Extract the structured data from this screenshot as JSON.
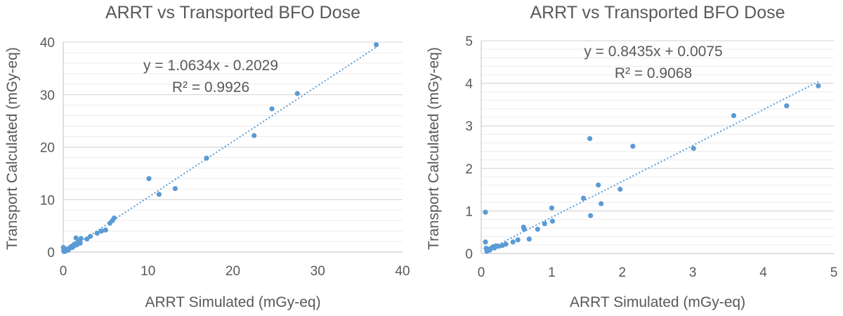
{
  "chart_data": [
    {
      "type": "scatter",
      "title": "ARRT vs Transported BFO Dose",
      "xlabel": "ARRT Simulated (mGy-eq)",
      "ylabel": "Transport Calculated (mGy-eq)",
      "xlim": [
        0,
        40
      ],
      "ylim": [
        0,
        40
      ],
      "xticks": [
        "0",
        "10",
        "20",
        "30",
        "40"
      ],
      "yticks": [
        "0",
        "10",
        "20",
        "30",
        "40"
      ],
      "grid": true,
      "color": "#5b9bd5",
      "trendline": {
        "slope": 1.0634,
        "intercept": -0.2029,
        "equation": "y = 1.0634x - 0.2029",
        "r2": "R² = 0.9926"
      },
      "points": [
        [
          0.02,
          0.9
        ],
        [
          0.05,
          0.3
        ],
        [
          0.1,
          0.1
        ],
        [
          0.2,
          0.3
        ],
        [
          0.3,
          0.2
        ],
        [
          0.4,
          0.5
        ],
        [
          0.5,
          0.6
        ],
        [
          0.6,
          0.4
        ],
        [
          0.7,
          0.7
        ],
        [
          0.8,
          0.8
        ],
        [
          0.9,
          1.0
        ],
        [
          1.0,
          1.1
        ],
        [
          1.1,
          0.9
        ],
        [
          1.2,
          1.2
        ],
        [
          1.3,
          1.5
        ],
        [
          1.4,
          1.3
        ],
        [
          1.5,
          1.6
        ],
        [
          1.6,
          1.4
        ],
        [
          1.7,
          1.8
        ],
        [
          1.5,
          2.7
        ],
        [
          1.8,
          2.0
        ],
        [
          2.0,
          1.7
        ],
        [
          2.1,
          2.6
        ],
        [
          2.8,
          2.5
        ],
        [
          3.2,
          3.0
        ],
        [
          4.0,
          3.6
        ],
        [
          4.5,
          4.0
        ],
        [
          5.0,
          4.2
        ],
        [
          5.5,
          5.5
        ],
        [
          5.8,
          6.0
        ],
        [
          6.0,
          6.5
        ],
        [
          10.1,
          14.0
        ],
        [
          11.3,
          11.0
        ],
        [
          13.2,
          12.1
        ],
        [
          16.9,
          17.9
        ],
        [
          22.5,
          22.2
        ],
        [
          24.6,
          27.3
        ],
        [
          27.6,
          30.2
        ],
        [
          36.9,
          39.5
        ]
      ]
    },
    {
      "type": "scatter",
      "title": "ARRT vs Transported BFO Dose",
      "xlabel": "ARRT Simulated (mGy-eq)",
      "ylabel": "Transport Calculated (mGy-eq)",
      "xlim": [
        0,
        5
      ],
      "ylim": [
        0,
        5
      ],
      "xticks": [
        "0",
        "1",
        "2",
        "3",
        "4",
        "5"
      ],
      "yticks": [
        "0",
        "1",
        "2",
        "3",
        "4",
        "5"
      ],
      "grid": true,
      "color": "#5b9bd5",
      "trendline": {
        "slope": 0.8435,
        "intercept": 0.0075,
        "equation": "y = 0.8435x + 0.0075",
        "r2": "R² = 0.9068"
      },
      "points": [
        [
          0.06,
          0.97
        ],
        [
          0.06,
          0.27
        ],
        [
          0.07,
          0.12
        ],
        [
          0.08,
          0.05
        ],
        [
          0.1,
          0.1
        ],
        [
          0.12,
          0.08
        ],
        [
          0.14,
          0.12
        ],
        [
          0.17,
          0.16
        ],
        [
          0.19,
          0.13
        ],
        [
          0.21,
          0.18
        ],
        [
          0.25,
          0.17
        ],
        [
          0.3,
          0.19
        ],
        [
          0.35,
          0.22
        ],
        [
          0.45,
          0.27
        ],
        [
          0.52,
          0.32
        ],
        [
          0.6,
          0.62
        ],
        [
          0.61,
          0.57
        ],
        [
          0.68,
          0.34
        ],
        [
          0.8,
          0.57
        ],
        [
          0.9,
          0.7
        ],
        [
          1.0,
          1.07
        ],
        [
          1.01,
          0.76
        ],
        [
          1.45,
          1.3
        ],
        [
          1.54,
          2.7
        ],
        [
          1.55,
          0.89
        ],
        [
          1.66,
          1.61
        ],
        [
          1.7,
          1.17
        ],
        [
          1.97,
          1.51
        ],
        [
          2.15,
          2.52
        ],
        [
          3.01,
          2.47
        ],
        [
          3.58,
          3.24
        ],
        [
          4.33,
          3.47
        ],
        [
          4.78,
          3.94
        ]
      ]
    }
  ]
}
